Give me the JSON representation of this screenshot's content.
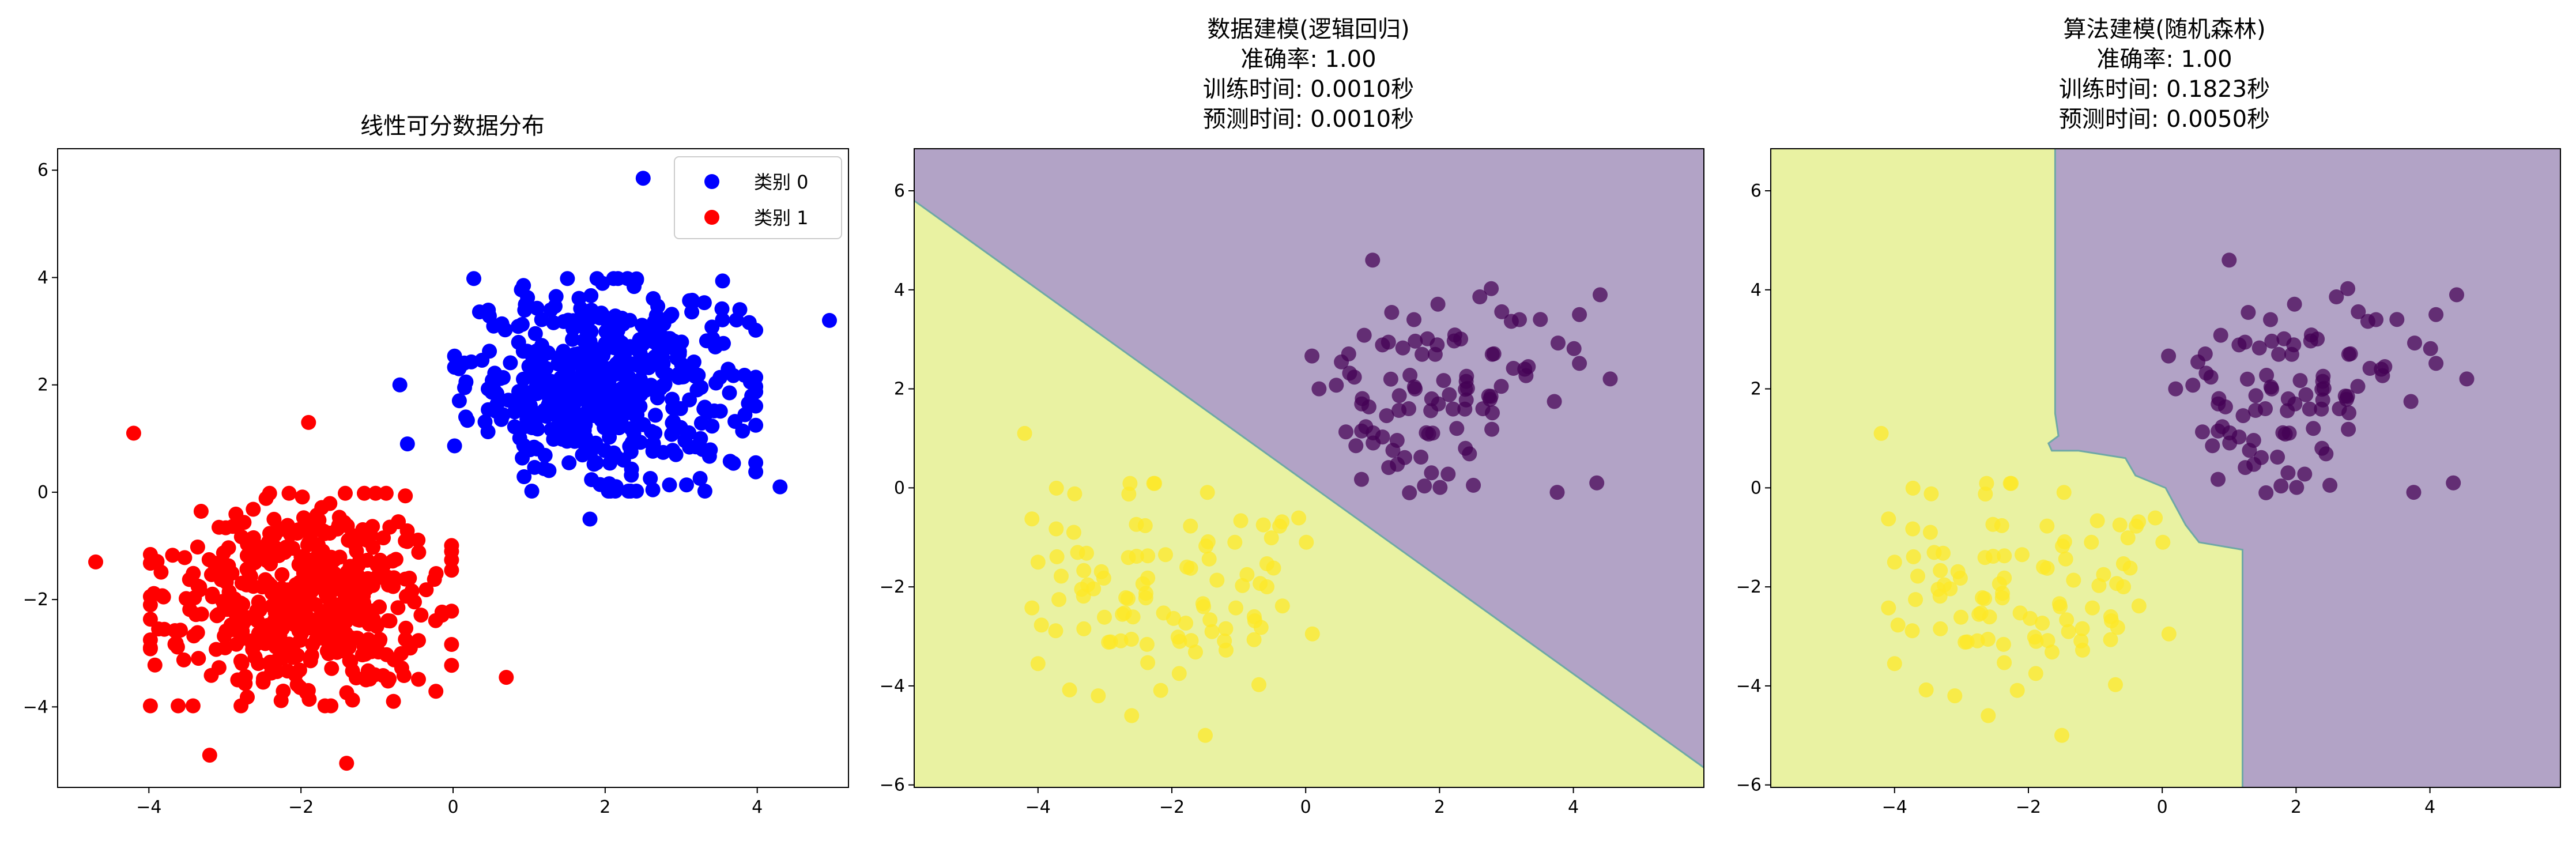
{
  "colors": {
    "class0": "#0000ff",
    "class1": "#ff0000",
    "region_class0": "#b2a3c6",
    "region_class1": "#e9f2a2",
    "point_class0": "#440154",
    "point_class1": "#fde725",
    "boundary": "#6fa8a6"
  },
  "chart_data": [
    {
      "type": "scatter",
      "title": "线性可分数据分布",
      "xlim": [
        -5.2,
        5.2
      ],
      "ylim": [
        -5.5,
        6.4
      ],
      "xticks": [
        -4,
        -2,
        0,
        2,
        4
      ],
      "yticks": [
        -4,
        -2,
        0,
        2,
        4,
        6
      ],
      "legend": {
        "position": "top-right",
        "entries": [
          "类别 0",
          "类别 1"
        ]
      },
      "grid": false,
      "series": [
        {
          "name": "类别 0",
          "center": [
            2.0,
            2.0
          ],
          "spread": 0.9,
          "count": 500,
          "extremes": [
            [
              2.5,
              5.85
            ],
            [
              4.95,
              3.2
            ],
            [
              -0.6,
              0.9
            ],
            [
              1.8,
              -0.5
            ],
            [
              4.3,
              0.1
            ],
            [
              -0.7,
              2.0
            ]
          ]
        },
        {
          "name": "类别 1",
          "center": [
            -2.0,
            -2.0
          ],
          "spread": 0.9,
          "count": 500,
          "extremes": [
            [
              -4.2,
              1.1
            ],
            [
              -4.7,
              -1.3
            ],
            [
              -1.4,
              -5.05
            ],
            [
              0.7,
              -3.45
            ],
            [
              -3.2,
              -4.9
            ],
            [
              -1.9,
              1.3
            ]
          ]
        }
      ]
    },
    {
      "type": "scatter",
      "title_lines": [
        "数据建模(逻辑回归)",
        "准确率: 1.00",
        "训练时间: 0.0010秒",
        "预测时间: 0.0010秒"
      ],
      "xlim": [
        -5.85,
        5.95
      ],
      "ylim": [
        -6.05,
        6.85
      ],
      "xticks": [
        -4,
        -2,
        0,
        2,
        4
      ],
      "yticks": [
        -6,
        -4,
        -2,
        0,
        2,
        4,
        6
      ],
      "grid": false,
      "decision_boundary": [
        [
          -5.85,
          5.8
        ],
        [
          5.95,
          -5.65
        ]
      ],
      "class0_region": "upper-right",
      "class1_region": "lower-left",
      "series": [
        {
          "name": "",
          "class": 0,
          "center": [
            2.0,
            2.0
          ],
          "spread": 0.95,
          "count": 100,
          "extremes": [
            [
              1.0,
              4.6
            ],
            [
              4.4,
              3.9
            ],
            [
              4.55,
              2.2
            ],
            [
              4.35,
              0.1
            ],
            [
              0.2,
              2.0
            ],
            [
              1.55,
              -0.1
            ]
          ]
        },
        {
          "name": "",
          "class": 1,
          "center": [
            -2.0,
            -2.0
          ],
          "spread": 0.95,
          "count": 100,
          "extremes": [
            [
              -4.2,
              1.1
            ],
            [
              -4.0,
              -1.5
            ],
            [
              -4.0,
              -3.55
            ],
            [
              -3.1,
              -4.2
            ],
            [
              -2.6,
              -4.6
            ],
            [
              -1.5,
              -5.0
            ],
            [
              0.1,
              -2.95
            ]
          ]
        }
      ]
    },
    {
      "type": "scatter",
      "title_lines": [
        "算法建模(随机森林)",
        "准确率: 1.00",
        "训练时间: 0.1823秒",
        "预测时间: 0.0050秒"
      ],
      "xlim": [
        -5.85,
        5.95
      ],
      "ylim": [
        -6.05,
        6.85
      ],
      "xticks": [
        -4,
        -2,
        0,
        2,
        4
      ],
      "yticks": [
        -6,
        -4,
        -2,
        0,
        2,
        4,
        6
      ],
      "grid": false,
      "decision_boundary": [
        [
          -1.6,
          6.85
        ],
        [
          -1.6,
          1.5
        ],
        [
          -1.55,
          1.05
        ],
        [
          -1.7,
          0.9
        ],
        [
          -1.65,
          0.75
        ],
        [
          -1.25,
          0.75
        ],
        [
          -0.55,
          0.6
        ],
        [
          -0.4,
          0.25
        ],
        [
          0.05,
          0.0
        ],
        [
          0.35,
          -0.75
        ],
        [
          0.55,
          -1.1
        ],
        [
          1.2,
          -1.25
        ],
        [
          1.2,
          -6.05
        ]
      ],
      "class0_region": "right",
      "class1_region": "left",
      "series": [
        {
          "name": "",
          "class": 0,
          "center": [
            2.0,
            2.0
          ],
          "spread": 0.95,
          "count": 100,
          "extremes": [
            [
              1.0,
              4.6
            ],
            [
              4.4,
              3.9
            ],
            [
              4.55,
              2.2
            ],
            [
              4.35,
              0.1
            ],
            [
              0.2,
              2.0
            ],
            [
              1.55,
              -0.1
            ]
          ]
        },
        {
          "name": "",
          "class": 1,
          "center": [
            -2.0,
            -2.0
          ],
          "spread": 0.95,
          "count": 100,
          "extremes": [
            [
              -4.2,
              1.1
            ],
            [
              -4.0,
              -1.5
            ],
            [
              -4.0,
              -3.55
            ],
            [
              -3.1,
              -4.2
            ],
            [
              -2.6,
              -4.6
            ],
            [
              -1.5,
              -5.0
            ],
            [
              0.1,
              -2.95
            ]
          ]
        }
      ]
    }
  ]
}
